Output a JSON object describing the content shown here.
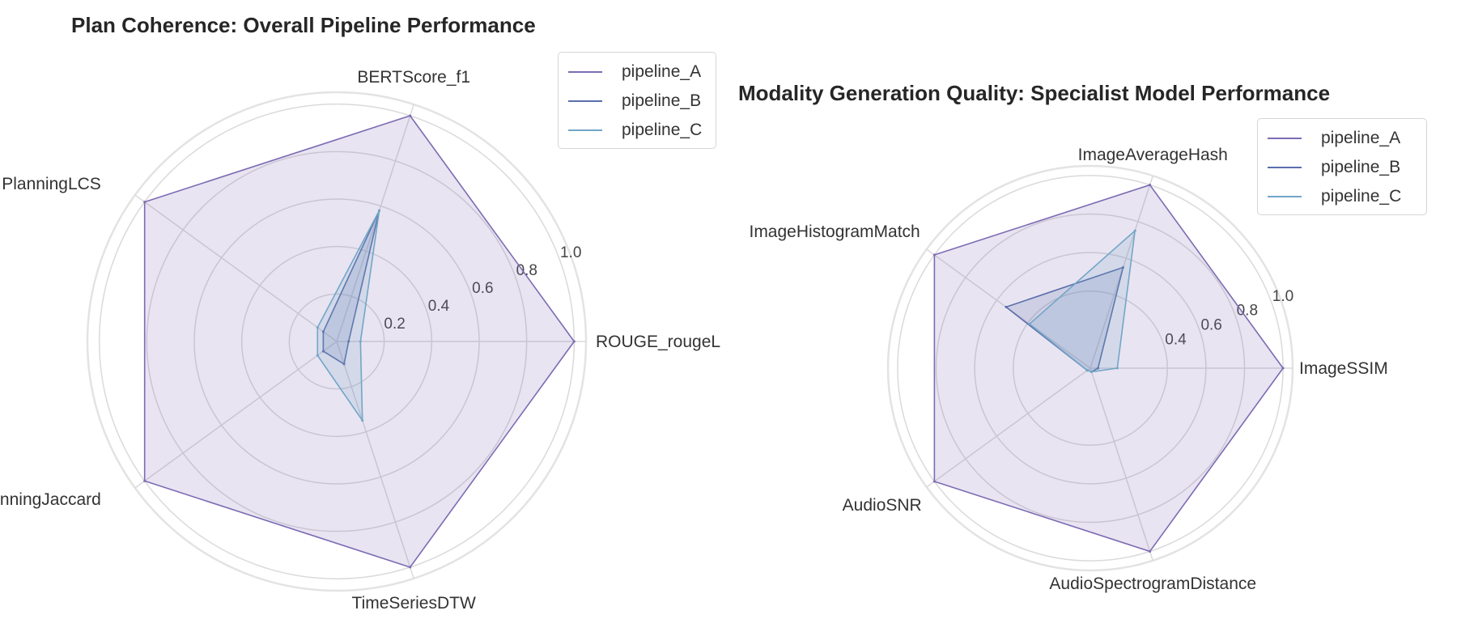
{
  "colors": {
    "pipeline_A": "#7d6bb4",
    "pipeline_B": "#5a6eaa",
    "pipeline_C": "#72a6c8",
    "grid": "#dadada",
    "outer_ring": "#e3e3e3",
    "axis_label": "#333333",
    "tick_label": "#444444"
  },
  "chart_data": [
    {
      "type": "radar",
      "title": "Plan Coherence: Overall Pipeline Performance",
      "axes": [
        "ROUGE_rougeL",
        "BERTScore_f1",
        "PlanningLCS",
        "PlanningJaccard",
        "TimeSeriesDTW"
      ],
      "rgrid": [
        0.2,
        0.4,
        0.6,
        0.8,
        1.0
      ],
      "rgrid_labels": [
        "0.2",
        "0.4",
        "0.6",
        "0.8",
        "1.0"
      ],
      "rlim": [
        0,
        1.05
      ],
      "grid": true,
      "legend": "upper right",
      "series": [
        {
          "name": "pipeline_A",
          "values": [
            1.0,
            1.0,
            1.0,
            1.0,
            1.0
          ]
        },
        {
          "name": "pipeline_B",
          "values": [
            0.05,
            0.58,
            0.07,
            0.07,
            0.1
          ]
        },
        {
          "name": "pipeline_C",
          "values": [
            0.1,
            0.58,
            0.1,
            0.1,
            0.35
          ]
        }
      ]
    },
    {
      "type": "radar",
      "title": "Modality Generation Quality: Specialist Model Performance",
      "axes": [
        "ImageSSIM",
        "ImageAverageHash",
        "ImageHistogramMatch",
        "AudioSNR",
        "AudioSpectrogramDistance"
      ],
      "rgrid": [
        0.4,
        0.6,
        0.8,
        1.0
      ],
      "rgrid_labels": [
        "0.4",
        "0.6",
        "0.8",
        "1.0"
      ],
      "rlim": [
        0,
        1.05
      ],
      "grid": true,
      "legend": "upper right",
      "series": [
        {
          "name": "pipeline_A",
          "values": [
            1.0,
            1.0,
            1.0,
            1.0,
            1.0
          ]
        },
        {
          "name": "pipeline_B",
          "values": [
            0.04,
            0.55,
            0.54,
            0.02,
            0.02
          ]
        },
        {
          "name": "pipeline_C",
          "values": [
            0.14,
            0.75,
            0.39,
            0.02,
            0.02
          ]
        }
      ]
    }
  ]
}
